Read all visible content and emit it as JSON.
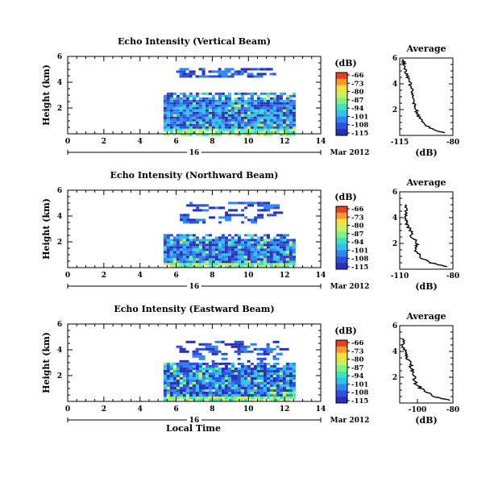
{
  "colors": {
    "colormap": [
      "#2a2fb8",
      "#2f4fe0",
      "#2f86f0",
      "#2fc0f0",
      "#3fe0c8",
      "#7ff08a",
      "#c8f060",
      "#f8e040",
      "#f89830",
      "#e84020"
    ],
    "axis": "#000000",
    "line": "#000000"
  },
  "shared": {
    "day_label": "16",
    "month_year": "Mar 2012",
    "x_axis_label": "Local Time",
    "avg_title": "Average",
    "avg_xlabel": "(dB)",
    "cb_label": "(dB)"
  },
  "panels": [
    {
      "title": "Echo Intensity (Vertical Beam)",
      "ylabel": "Height (km)",
      "show_xlabel": false
    },
    {
      "title": "Echo Intensity (Northward Beam)",
      "ylabel": "Height (km)",
      "show_xlabel": false
    },
    {
      "title": "Echo Intensity (Eastward Beam)",
      "ylabel": "Height (km)",
      "show_xlabel": true
    }
  ],
  "chart_data": [
    {
      "type": "heatmap",
      "title": "Echo Intensity (Vertical Beam)",
      "ylabel": "Height (km)",
      "xlabel": "",
      "xlim": [
        0,
        14
      ],
      "ylim": [
        0,
        6
      ],
      "x_ticks": [
        0,
        2,
        4,
        6,
        8,
        10,
        12,
        14
      ],
      "y_ticks": [
        2,
        4,
        6
      ],
      "data_x_range": [
        5.3,
        12.6
      ],
      "echo_layers": [
        {
          "x_range": [
            5.3,
            12.6
          ],
          "y_range": [
            0,
            3.2
          ],
          "level": "-101 to -87"
        },
        {
          "x_range": [
            6.0,
            11.5
          ],
          "y_range": [
            4.5,
            5.1
          ],
          "level": "-108 to -101"
        }
      ],
      "colorbar": {
        "label": "(dB)",
        "ticks": [
          -66,
          -73,
          -80,
          -87,
          -94,
          -101,
          -108,
          -115
        ]
      },
      "average_profile": {
        "title": "Average",
        "xlabel": "(dB)",
        "xlim": [
          -115,
          -80
        ],
        "x_ticks": [
          -115,
          -80
        ],
        "y_ticks": [
          2,
          4,
          6
        ],
        "ylim": [
          0,
          6
        ],
        "height_km": [
          0.2,
          0.5,
          1.0,
          1.5,
          2.0,
          2.5,
          3.0,
          3.5,
          4.0,
          4.5,
          5.0,
          5.5,
          5.9
        ],
        "db": [
          -86,
          -94,
          -100,
          -103,
          -104,
          -106,
          -107,
          -107,
          -108,
          -110,
          -111,
          -112,
          -113
        ]
      }
    },
    {
      "type": "heatmap",
      "title": "Echo Intensity (Northward Beam)",
      "ylabel": "Height (km)",
      "xlabel": "",
      "xlim": [
        0,
        14
      ],
      "ylim": [
        0,
        6
      ],
      "x_ticks": [
        0,
        2,
        4,
        6,
        8,
        10,
        12,
        14
      ],
      "y_ticks": [
        2,
        4,
        6
      ],
      "data_x_range": [
        5.3,
        12.6
      ],
      "echo_layers": [
        {
          "x_range": [
            5.3,
            12.6
          ],
          "y_range": [
            0,
            2.6
          ],
          "level": "-108 to -94"
        },
        {
          "x_range": [
            6.2,
            11.5
          ],
          "y_range": [
            3.5,
            5.1
          ],
          "level": "-108 to -101"
        }
      ],
      "colorbar": {
        "label": "(dB)",
        "ticks": [
          -66,
          -73,
          -80,
          -87,
          -94,
          -101,
          -108,
          -115
        ]
      },
      "average_profile": {
        "title": "Average",
        "xlabel": "(dB)",
        "xlim": [
          -110,
          -80
        ],
        "x_ticks": [
          -110,
          -80
        ],
        "y_ticks": [
          2,
          4,
          6
        ],
        "ylim": [
          0,
          6
        ],
        "height_km": [
          0.2,
          0.5,
          1.0,
          1.5,
          2.0,
          2.5,
          3.0,
          3.5,
          4.0,
          4.5,
          5.0
        ],
        "db": [
          -84,
          -93,
          -99,
          -101,
          -100,
          -103,
          -104,
          -106,
          -107,
          -106,
          -107
        ]
      }
    },
    {
      "type": "heatmap",
      "title": "Echo Intensity (Eastward Beam)",
      "ylabel": "Height (km)",
      "xlabel": "Local Time",
      "xlim": [
        0,
        14
      ],
      "ylim": [
        0,
        6
      ],
      "x_ticks": [
        0,
        2,
        4,
        6,
        8,
        10,
        12,
        14
      ],
      "y_ticks": [
        2,
        4,
        6
      ],
      "data_x_range": [
        5.3,
        12.6
      ],
      "echo_layers": [
        {
          "x_range": [
            5.3,
            12.6
          ],
          "y_range": [
            0,
            3.0
          ],
          "level": "-108 to -94"
        },
        {
          "x_range": [
            6.0,
            11.8
          ],
          "y_range": [
            3.0,
            4.7
          ],
          "level": "-108 to -101"
        }
      ],
      "colorbar": {
        "label": "(dB)",
        "ticks": [
          -66,
          -73,
          -80,
          -87,
          -94,
          -101,
          -108,
          -115
        ]
      },
      "average_profile": {
        "title": "Average",
        "xlabel": "(dB)",
        "xlim": [
          -110,
          -80
        ],
        "x_ticks": [
          -100,
          -80
        ],
        "y_ticks": [
          2,
          4,
          6
        ],
        "ylim": [
          0,
          6
        ],
        "height_km": [
          0.2,
          0.5,
          1.0,
          1.5,
          2.0,
          2.5,
          3.0,
          3.5,
          4.0,
          4.5,
          5.0
        ],
        "db": [
          -82,
          -90,
          -97,
          -101,
          -102,
          -103,
          -104,
          -106,
          -107,
          -108,
          -108
        ]
      }
    }
  ]
}
